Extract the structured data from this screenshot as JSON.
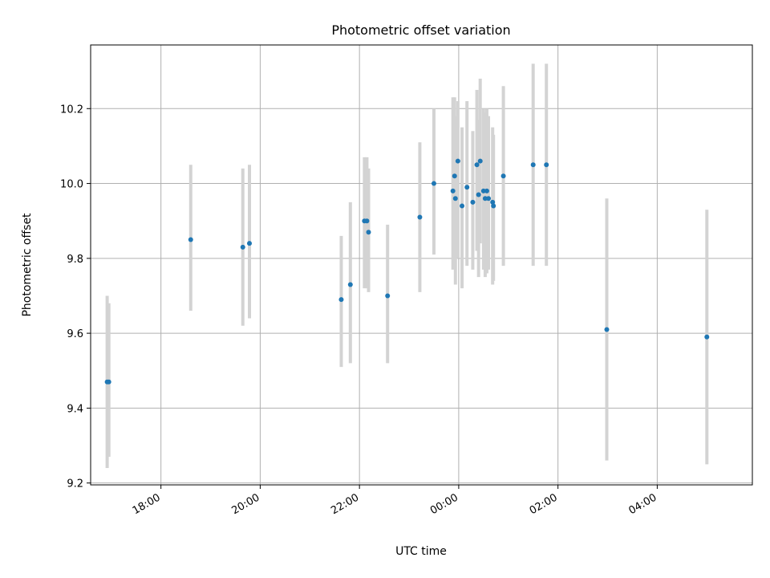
{
  "chart_data": {
    "type": "scatter",
    "title": "Photometric offset variation",
    "xlabel": "UTC time",
    "ylabel": "Photometric offset",
    "x_axis_type": "time",
    "x_tick_labels": [
      "18:00",
      "20:00",
      "22:00",
      "00:00",
      "02:00",
      "04:00"
    ],
    "y_tick_labels": [
      "9.2",
      "9.4",
      "9.6",
      "9.8",
      "10.0",
      "10.2"
    ],
    "xlim": [
      "16:35",
      "05:55"
    ],
    "ylim": [
      9.195,
      10.37
    ],
    "grid": true,
    "marker_color": "#1f77b4",
    "errorbar_color": "#d3d3d3",
    "points": [
      {
        "x": "16:55",
        "y": 9.47,
        "lo": 9.24,
        "hi": 9.7
      },
      {
        "x": "16:57",
        "y": 9.47,
        "lo": 9.27,
        "hi": 9.68
      },
      {
        "x": "18:36",
        "y": 9.85,
        "lo": 9.66,
        "hi": 10.05
      },
      {
        "x": "19:39",
        "y": 9.83,
        "lo": 9.62,
        "hi": 10.04
      },
      {
        "x": "19:47",
        "y": 9.84,
        "lo": 9.64,
        "hi": 10.05
      },
      {
        "x": "21:38",
        "y": 9.69,
        "lo": 9.51,
        "hi": 9.86
      },
      {
        "x": "21:49",
        "y": 9.73,
        "lo": 9.52,
        "hi": 9.95
      },
      {
        "x": "22:06",
        "y": 9.9,
        "lo": 9.72,
        "hi": 10.07
      },
      {
        "x": "22:09",
        "y": 9.9,
        "lo": 9.72,
        "hi": 10.07
      },
      {
        "x": "22:11",
        "y": 9.87,
        "lo": 9.71,
        "hi": 10.04
      },
      {
        "x": "22:34",
        "y": 9.7,
        "lo": 9.52,
        "hi": 9.89
      },
      {
        "x": "23:13",
        "y": 9.91,
        "lo": 9.71,
        "hi": 10.11
      },
      {
        "x": "23:30",
        "y": 10.0,
        "lo": 9.81,
        "hi": 10.2
      },
      {
        "x": "23:53",
        "y": 9.98,
        "lo": 9.77,
        "hi": 10.23
      },
      {
        "x": "23:55",
        "y": 10.02,
        "lo": 9.78,
        "hi": 10.23
      },
      {
        "x": "23:56",
        "y": 9.96,
        "lo": 9.73,
        "hi": 10.18
      },
      {
        "x": "23:59",
        "y": 10.06,
        "lo": 9.8,
        "hi": 10.22
      },
      {
        "x": "00:04",
        "y": 9.94,
        "lo": 9.72,
        "hi": 10.15
      },
      {
        "x": "00:10",
        "y": 9.99,
        "lo": 9.78,
        "hi": 10.22
      },
      {
        "x": "00:17",
        "y": 9.95,
        "lo": 9.77,
        "hi": 10.14
      },
      {
        "x": "00:22",
        "y": 10.05,
        "lo": 9.82,
        "hi": 10.25
      },
      {
        "x": "00:24",
        "y": 9.97,
        "lo": 9.75,
        "hi": 10.17
      },
      {
        "x": "00:26",
        "y": 10.06,
        "lo": 9.84,
        "hi": 10.28
      },
      {
        "x": "00:30",
        "y": 9.98,
        "lo": 9.77,
        "hi": 10.2
      },
      {
        "x": "00:32",
        "y": 9.96,
        "lo": 9.75,
        "hi": 10.19
      },
      {
        "x": "00:34",
        "y": 9.98,
        "lo": 9.76,
        "hi": 10.2
      },
      {
        "x": "00:36",
        "y": 9.96,
        "lo": 9.77,
        "hi": 10.18
      },
      {
        "x": "00:41",
        "y": 9.95,
        "lo": 9.73,
        "hi": 10.15
      },
      {
        "x": "00:42",
        "y": 9.94,
        "lo": 9.74,
        "hi": 10.13
      },
      {
        "x": "00:54",
        "y": 10.02,
        "lo": 9.78,
        "hi": 10.26
      },
      {
        "x": "01:30",
        "y": 10.05,
        "lo": 9.78,
        "hi": 10.32
      },
      {
        "x": "01:46",
        "y": 10.05,
        "lo": 9.78,
        "hi": 10.32
      },
      {
        "x": "02:59",
        "y": 9.61,
        "lo": 9.26,
        "hi": 9.96
      },
      {
        "x": "05:00",
        "y": 9.59,
        "lo": 9.25,
        "hi": 9.93
      }
    ]
  }
}
